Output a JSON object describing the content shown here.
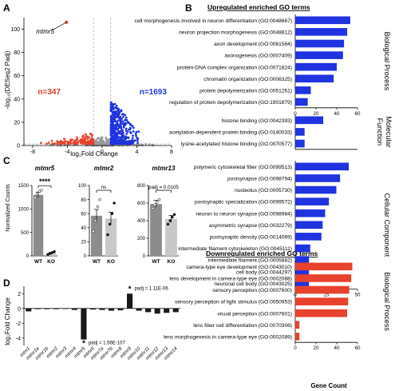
{
  "colors": {
    "up": "#1f33e0",
    "down": "#e8412c",
    "grey": "#9a9a9a",
    "wt": "#8c8c8c",
    "ko": "#c8c8c8",
    "bar_dark": "#1a1a1a",
    "red_text": "#d63a26",
    "blue_text": "#2036d6"
  },
  "chart_data": [
    {
      "panel": "A",
      "type": "scatter",
      "label": "A",
      "xlabel": "log₂Fold Change",
      "ylabel": "-log₁₀(DESeq2 Padj)",
      "xlim": [
        -9,
        8
      ],
      "ylim": [
        0,
        110
      ],
      "xticks": [
        "-8",
        "-4",
        "0",
        "4",
        "8"
      ],
      "yticks": [
        "0",
        "20",
        "40",
        "60",
        "80",
        "100"
      ],
      "annotations": {
        "gene": "mtmr5",
        "gene_x": -4.1,
        "gene_y": 106,
        "down_count": "n=347",
        "up_count": "n=1693"
      },
      "thresholds": {
        "vlines": [
          -1,
          1
        ],
        "hline": 1.3
      }
    },
    {
      "panel": "B",
      "type": "bar",
      "label": "B",
      "orientation": "horizontal",
      "xlabel": "Gene Count",
      "xticks": [
        "0",
        "25",
        "50"
      ],
      "header_up": "Upregulated enriched GO terms",
      "header_down": "Downregulated enriched GO terms",
      "groups": [
        {
          "name": "Biological Process",
          "color": "up",
          "xlim": [
            0,
            60
          ],
          "xticks": [
            "0",
            "20",
            "40",
            "60"
          ],
          "terms": [
            "cell morphogenesis involved in neuron differentiation (GO:0048667)",
            "neuron projection morphogenesis (GO:0048812)",
            "axon development (GO:0061564)",
            "axonogenesis (GO:0007409)",
            "protein-DNA complex organization (GO:0071824)",
            "chromatin organization (GO:0006325)",
            "protein depolymerization (GO:0051261)",
            "regulation of protein depolymerization (GO:1901879)"
          ],
          "values": [
            53,
            50,
            47,
            46,
            40,
            37,
            15,
            12
          ]
        },
        {
          "name": "Molecular Function",
          "color": "up",
          "xlim": [
            0,
            60
          ],
          "terms": [
            "histone binding (GO:0042393)",
            "acetylation-dependent protein binding (GO:0140033)",
            "lysine-acetylated histone binding (GO:0070577)"
          ],
          "values": [
            27,
            9,
            9
          ]
        },
        {
          "name": "Cellular Component",
          "color": "up",
          "xlim": [
            0,
            50
          ],
          "xticks": [
            "0",
            "25",
            "50"
          ],
          "terms": [
            "polymeric cytoskeletal fiber (GO:0099513)",
            "postsynapse (GO:0098794)",
            "nucleolus (GO:0005730)",
            "postsynaptic specialization (GO:0099572)",
            "neuron to neuron synapse (GO:0098984)",
            "asymmetric synapse (GO:0032279)",
            "postsynaptic density (GO:0014069)",
            "intermediate filament cytoskeleton (GO:0045111)",
            "intermediate filament (GO:0005882)",
            "cell body (GO:0044297)",
            "neuronal cell body (GO:0043025)"
          ],
          "values": [
            43,
            36,
            33,
            27,
            24,
            22,
            21,
            12,
            11,
            11,
            11
          ]
        },
        {
          "name": "Biological Process",
          "color": "down",
          "xlim": [
            0,
            60
          ],
          "xticks": [
            "0",
            "20",
            "40",
            "60"
          ],
          "terms": [
            "camera-type eye development (GO:0043010)",
            "lens development in camera-type eye (GO:0002088)",
            "sensory perception (GO:0007600)",
            "sensory perception of light stimulus (GO:0050953)",
            "visual perception (GO:0007601)",
            "lens fiber cell differentiation (GO:0070306)",
            "lens morphogenesis in camera-type eye (GO:0002089)"
          ],
          "values": [
            55,
            54,
            52,
            51,
            50,
            4,
            4
          ]
        }
      ]
    },
    {
      "panel": "C",
      "type": "bar",
      "label": "C",
      "ylabel": "Normalized Counts",
      "categories": [
        "WT",
        "KO"
      ],
      "subplots": [
        {
          "title": "mtmr5",
          "values": [
            1300,
            60
          ],
          "errors": [
            60,
            15
          ],
          "ylim": [
            0,
            1500
          ],
          "yticks": [
            "0",
            "500",
            "1000",
            "1500"
          ],
          "signif": "****",
          "points": [
            [
              1240,
              1320,
              1380,
              1400
            ],
            [
              30,
              50,
              70,
              90
            ]
          ]
        },
        {
          "title": "mtmr2",
          "values": [
            57,
            53
          ],
          "errors": [
            9,
            9
          ],
          "ylim": [
            0,
            100
          ],
          "yticks": [
            "0",
            "20",
            "40",
            "60",
            "80",
            "100"
          ],
          "signif": "ns",
          "points": [
            [
              35,
              50,
              70,
              80
            ],
            [
              30,
              45,
              60,
              75
            ]
          ]
        },
        {
          "title": "mtmr13",
          "values": [
            590,
            420
          ],
          "errors": [
            40,
            40
          ],
          "ylim": [
            0,
            800
          ],
          "yticks": [
            "0",
            "200",
            "400",
            "600",
            "800"
          ],
          "signif": "padj = 0.0105",
          "points": [
            [
              540,
              580,
              610,
              640
            ],
            [
              360,
              400,
              440,
              470
            ]
          ]
        }
      ]
    },
    {
      "panel": "D",
      "type": "bar",
      "label": "D",
      "ylabel": "log₂Fold Change",
      "ylim": [
        -5,
        3
      ],
      "yticks": [
        "-4",
        "-2",
        "0",
        "2"
      ],
      "categories": [
        "mtm1",
        "mtmr1a",
        "mtmr1b",
        "mtmr2",
        "mtmr3",
        "mtmr4",
        "mtmr5",
        "mtmr6",
        "mtmr7a",
        "mtmr7b",
        "mtmr8",
        "mtmr9",
        "mtmr10",
        "mtmr11",
        "mtmr12",
        "mtmr13",
        "mtmr14"
      ],
      "values": [
        -0.4,
        -0.1,
        -0.1,
        -0.1,
        -0.05,
        -0.2,
        -4.2,
        -0.15,
        -0.2,
        -0.3,
        -0.25,
        2.0,
        -0.3,
        -0.5,
        -0.7,
        -0.6,
        -0.5
      ],
      "annotations": [
        {
          "index": 11,
          "text": "padj = 1.11E-06",
          "star": "*"
        },
        {
          "index": 6,
          "text": "padj = 1.56E-107",
          "star": "*"
        }
      ]
    }
  ]
}
